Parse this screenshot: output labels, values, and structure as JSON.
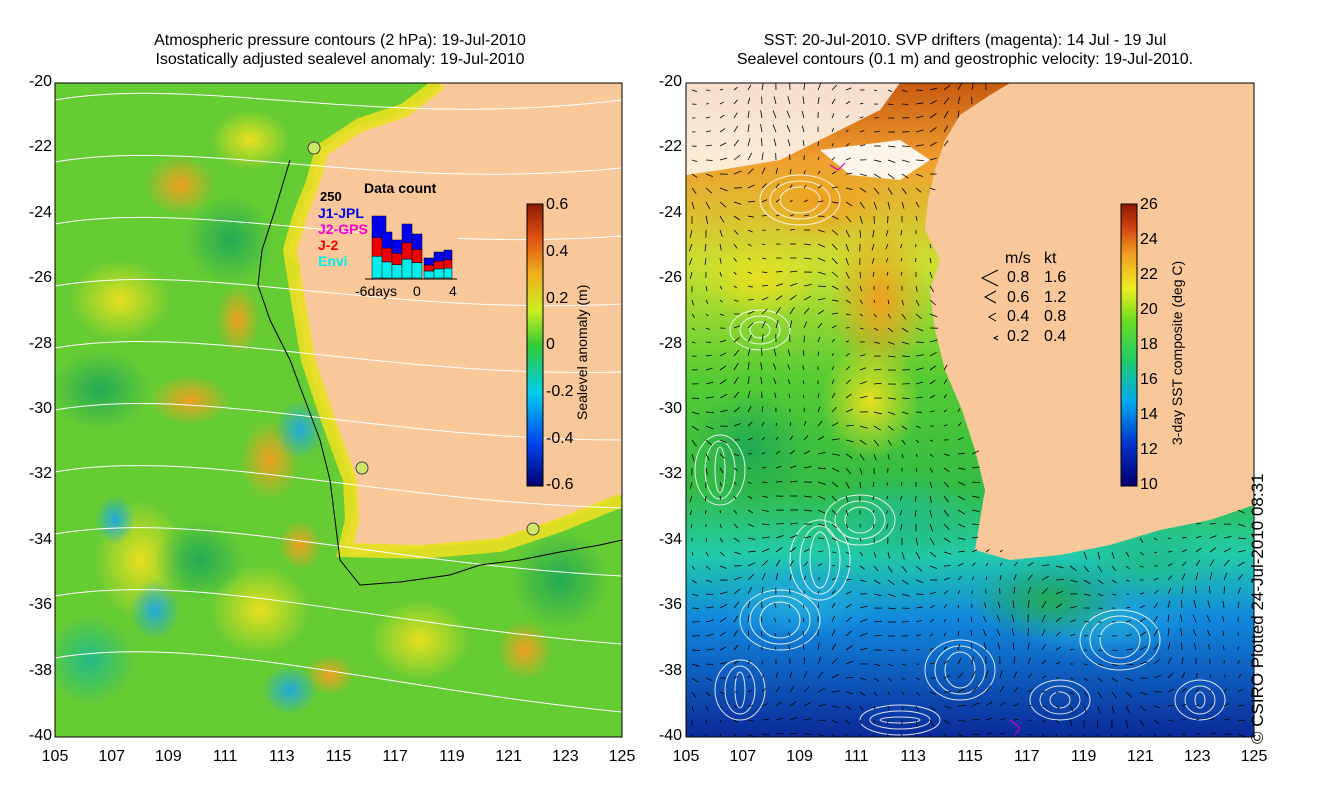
{
  "left_panel": {
    "title_line1": "Atmospheric pressure contours (2 hPa): 19-Jul-2010",
    "title_line2": "Isostatically adjusted sealevel anomaly: 19-Jul-2010",
    "y_ticks": [
      "-20",
      "-22",
      "-24",
      "-26",
      "-28",
      "-30",
      "-32",
      "-34",
      "-36",
      "-38",
      "-40"
    ],
    "x_ticks": [
      "105",
      "107",
      "109",
      "111",
      "113",
      "115",
      "117",
      "119",
      "121",
      "123",
      "125"
    ],
    "colorbar": {
      "label": "Sealevel anomaly (m)",
      "ticks": [
        "0.6",
        "0.4",
        "0.2",
        "0",
        "-0.2",
        "-0.4",
        "-0.6"
      ],
      "min": -0.6,
      "max": 0.6
    },
    "data_count": {
      "title": "Data count",
      "ymax_label": "250",
      "legend": [
        {
          "label": "J1-JPL",
          "color": "#0000ee"
        },
        {
          "label": "J2-GPS",
          "color": "#ff00cc"
        },
        {
          "label": "J-2",
          "color": "#ee0000"
        },
        {
          "label": "Envi",
          "color": "#00eeee"
        }
      ],
      "x_labels": [
        "-6days",
        "0",
        "4"
      ]
    }
  },
  "right_panel": {
    "title_line1": "SST: 20-Jul-2010. SVP drifters (magenta): 14 Jul - 19 Jul",
    "title_line2": "Sealevel contours (0.1 m) and geostrophic velocity: 19-Jul-2010.",
    "y_ticks": [
      "-20",
      "-22",
      "-24",
      "-26",
      "-28",
      "-30",
      "-32",
      "-34",
      "-36",
      "-38",
      "-40"
    ],
    "x_ticks": [
      "105",
      "107",
      "109",
      "111",
      "113",
      "115",
      "117",
      "119",
      "121",
      "123",
      "125"
    ],
    "colorbar": {
      "label": "3-day SST composite (deg C)",
      "ticks": [
        "26",
        "24",
        "22",
        "20",
        "18",
        "16",
        "14",
        "12",
        "10"
      ],
      "min": 10,
      "max": 26
    },
    "speed_legend": {
      "header_ms": "m/s",
      "header_kt": "kt",
      "rows": [
        {
          "ms": "0.8",
          "kt": "1.6"
        },
        {
          "ms": "0.6",
          "kt": "1.2"
        },
        {
          "ms": "0.4",
          "kt": "0.8"
        },
        {
          "ms": "0.2",
          "kt": "0.4"
        }
      ]
    }
  },
  "copyright": "© CSIRO Plotted 24-Jul-2010 08:31",
  "colors": {
    "land": "#f9c89a",
    "sla_green": "#55cc33",
    "sla_yellow": "#e8e020",
    "sla_orange": "#f0a020",
    "sst_green": "#33bb33",
    "sst_blue": "#0033aa"
  }
}
